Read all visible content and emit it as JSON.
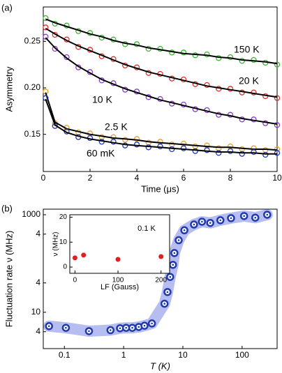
{
  "chart_data": [
    {
      "type": "relaxation",
      "panel_label": "(a)",
      "x_label": "Time (μs)",
      "y_label": "Asymmetry",
      "x": [
        0.1,
        0.5,
        1,
        1.5,
        2,
        2.5,
        3,
        3.5,
        4,
        4.5,
        5,
        5.5,
        6,
        6.5,
        7,
        7.5,
        8,
        8.5,
        9,
        9.5,
        10
      ],
      "series": [
        {
          "name": "150 K",
          "color": "#3cb832",
          "label_color": "#000000",
          "values": [
            0.275,
            0.269,
            0.267,
            0.261,
            0.259,
            0.254,
            0.252,
            0.247,
            0.247,
            0.242,
            0.242,
            0.238,
            0.238,
            0.235,
            0.236,
            0.232,
            0.233,
            0.229,
            0.23,
            0.227,
            0.225
          ],
          "fit": [
            0.274,
            0.27,
            0.266,
            0.262,
            0.258,
            0.255,
            0.251,
            0.248,
            0.246,
            0.243,
            0.241,
            0.239,
            0.237,
            0.236,
            0.235,
            0.233,
            0.232,
            0.23,
            0.229,
            0.228,
            0.226
          ]
        },
        {
          "name": "20 K",
          "color": "#e0302a",
          "label_color": "#000000",
          "values": [
            0.265,
            0.257,
            0.252,
            0.244,
            0.241,
            0.234,
            0.231,
            0.224,
            0.222,
            0.216,
            0.215,
            0.21,
            0.209,
            0.204,
            0.203,
            0.199,
            0.199,
            0.195,
            0.195,
            0.191,
            0.189
          ],
          "fit": [
            0.264,
            0.258,
            0.251,
            0.245,
            0.24,
            0.235,
            0.23,
            0.225,
            0.221,
            0.217,
            0.214,
            0.211,
            0.208,
            0.205,
            0.202,
            0.2,
            0.198,
            0.196,
            0.194,
            0.192,
            0.19
          ]
        },
        {
          "name": "10 K",
          "color": "#8a3cc8",
          "label_color": "#000000",
          "values": [
            0.255,
            0.242,
            0.233,
            0.222,
            0.217,
            0.208,
            0.205,
            0.198,
            0.196,
            0.19,
            0.188,
            0.183,
            0.182,
            0.177,
            0.176,
            0.171,
            0.171,
            0.166,
            0.166,
            0.162,
            0.16
          ],
          "fit": [
            0.254,
            0.243,
            0.232,
            0.223,
            0.216,
            0.209,
            0.204,
            0.199,
            0.195,
            0.191,
            0.187,
            0.184,
            0.181,
            0.178,
            0.175,
            0.172,
            0.17,
            0.167,
            0.165,
            0.163,
            0.161
          ]
        },
        {
          "name": "2.5 K",
          "color": "#e8a030",
          "label_color": "#e8a030",
          "values": [
            0.196,
            0.162,
            0.157,
            0.152,
            0.151,
            0.147,
            0.147,
            0.144,
            0.145,
            0.141,
            0.142,
            0.139,
            0.14,
            0.137,
            0.138,
            0.135,
            0.137,
            0.134,
            0.135,
            0.133,
            0.134
          ],
          "fit": [
            0.195,
            0.163,
            0.156,
            0.153,
            0.15,
            0.148,
            0.146,
            0.145,
            0.144,
            0.142,
            0.141,
            0.14,
            0.139,
            0.138,
            0.137,
            0.136,
            0.136,
            0.135,
            0.134,
            0.134,
            0.133
          ]
        },
        {
          "name": "60 mK",
          "color": "#2038b0",
          "label_color": "#2038b0",
          "values": [
            0.189,
            0.159,
            0.153,
            0.147,
            0.146,
            0.142,
            0.142,
            0.138,
            0.139,
            0.136,
            0.137,
            0.134,
            0.135,
            0.132,
            0.133,
            0.13,
            0.132,
            0.129,
            0.131,
            0.128,
            0.13
          ],
          "fit": [
            0.188,
            0.16,
            0.152,
            0.148,
            0.145,
            0.143,
            0.141,
            0.139,
            0.138,
            0.137,
            0.136,
            0.135,
            0.134,
            0.133,
            0.132,
            0.131,
            0.131,
            0.13,
            0.13,
            0.129,
            0.129
          ]
        }
      ],
      "xlim": [
        0,
        10
      ],
      "ylim": [
        0.11,
        0.287
      ],
      "xticks": [
        0,
        2,
        4,
        6,
        8,
        10
      ],
      "yticks": [
        0.15,
        {
          "value": 0.2,
          "label": "0.20"
        },
        0.25
      ]
    },
    {
      "type": "loglog",
      "panel_label": "(b)",
      "x_label": "T (K)",
      "y_label": "Fluctuation rate ν (MHz)",
      "x": [
        0.055,
        0.106,
        0.26,
        0.6,
        0.87,
        1.1,
        1.4,
        1.8,
        2.25,
        3.0,
        4.9,
        5.5,
        6.1,
        6.8,
        7.2,
        8.5,
        10.6,
        15.4,
        21,
        29,
        43,
        65,
        108,
        167,
        265
      ],
      "values": [
        5.2,
        4.8,
        4.1,
        4.3,
        4.7,
        4.8,
        4.8,
        5.0,
        5.3,
        5.9,
        15,
        26,
        53,
        94,
        164,
        300,
        480,
        630,
        720,
        680,
        770,
        850,
        940,
        870,
        1000
      ],
      "color": "#2038b0",
      "band_color": "#a8b2ee",
      "xlim": [
        0.044,
        390
      ],
      "ylim": [
        1.8,
        1300
      ],
      "xticks": [
        0.1,
        1,
        10,
        100
      ],
      "yticks": [
        {
          "value": 4,
          "label": "4"
        },
        10,
        {
          "value": 40,
          "label": "4"
        },
        {
          "value": 400,
          "label": "4"
        },
        1000
      ],
      "inset": {
        "type": "scatter",
        "x_label": "LF (Gauss)",
        "y_label": "ν (MHz)",
        "annotation": "0.1 K",
        "x": [
          0,
          20,
          100,
          200
        ],
        "values": [
          3.7,
          4.8,
          3.1,
          4.2
        ],
        "color": "#e02020",
        "xlim": [
          -12,
          220
        ],
        "ylim": [
          -2.5,
          21
        ],
        "xticks": [
          0,
          100,
          200
        ],
        "yticks": [
          0,
          10,
          20
        ]
      }
    }
  ]
}
